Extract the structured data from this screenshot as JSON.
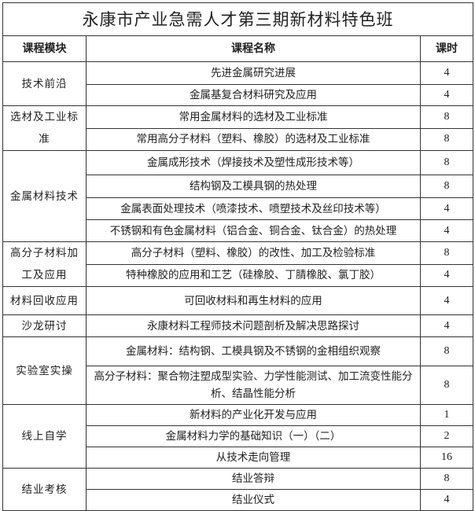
{
  "title": "永康市产业急需人才第三期新材料特色班",
  "headers": {
    "module": "课程模块",
    "course": "课程名称",
    "hours": "课时"
  },
  "modules": [
    {
      "name": "技术前沿",
      "courses": [
        {
          "name": "先进金属研究进展",
          "hours": "4"
        },
        {
          "name": "金属基复合材料研究及应用",
          "hours": "4"
        }
      ]
    },
    {
      "name": "选材及工业标准",
      "courses": [
        {
          "name": "常用金属材料的选材及工业标准",
          "hours": "8"
        },
        {
          "name": "常用高分子材料（塑料、橡胶）的选材及工业标准",
          "hours": "8"
        }
      ]
    },
    {
      "name": "金属材料技术",
      "courses": [
        {
          "name": "金属成形技术（焊接技术及塑性成形技术等）",
          "hours": "8"
        },
        {
          "name": "结构钢及工模具钢的热处理",
          "hours": "8"
        },
        {
          "name": "金属表面处理技术（喷漆技术、喷塑技术及丝印技术等）",
          "hours": "4"
        },
        {
          "name": "不锈钢和有色金属材料（铝合金、铜合金、钛合金）的热处理",
          "hours": "4"
        }
      ]
    },
    {
      "name": "高分子材料加工及应用",
      "courses": [
        {
          "name": "高分子材料（塑料、橡胶）的改性、加工及检验标准",
          "hours": "8"
        },
        {
          "name": "特种橡胶的应用和工艺（硅橡胶、丁腈橡胶、氯丁胶）",
          "hours": "4"
        }
      ]
    },
    {
      "name": "材料回收应用",
      "courses": [
        {
          "name": "可回收材料和再生材料的应用",
          "hours": "4"
        }
      ]
    },
    {
      "name": "沙龙研讨",
      "courses": [
        {
          "name": "永康材料工程师技术问题剖析及解决思路探讨",
          "hours": "4"
        }
      ]
    },
    {
      "name": "实验室实操",
      "courses": [
        {
          "name": "金属材料：结构钢、工模具钢及不锈钢的金相组织观察",
          "hours": "8"
        },
        {
          "name": "高分子材料：聚合物注塑成型实验、力学性能测试、加工流变性能分析、结晶性能分析",
          "hours": "8"
        }
      ]
    },
    {
      "name": "线上自学",
      "courses": [
        {
          "name": "新材料的产业化开发与应用",
          "hours": "1"
        },
        {
          "name": "金属材料力学的基础知识（一）（二）",
          "hours": "2"
        },
        {
          "name": "从技术走向管理",
          "hours": "16"
        }
      ]
    },
    {
      "name": "结业考核",
      "courses": [
        {
          "name": "结业答辩",
          "hours": "8"
        },
        {
          "name": "结业仪式",
          "hours": "4"
        }
      ]
    }
  ]
}
